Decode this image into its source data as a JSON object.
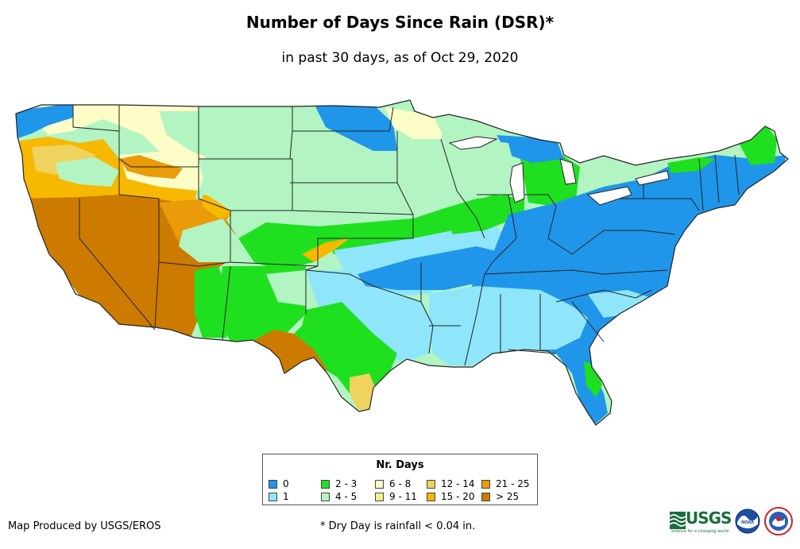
{
  "header": {
    "title": "Number of Days Since Rain (DSR)*",
    "subtitle": "in past 30 days, as of Oct 29, 2020"
  },
  "legend": {
    "title": "Nr. Days",
    "items": [
      {
        "label": "0",
        "color": "#1f96ea"
      },
      {
        "label": "1",
        "color": "#8fe6fb"
      },
      {
        "label": "2 - 3",
        "color": "#1fe01f"
      },
      {
        "label": "4 - 5",
        "color": "#b2f5c2"
      },
      {
        "label": "6 - 8",
        "color": "#fdfdc8"
      },
      {
        "label": "9 - 11",
        "color": "#f5f08a"
      },
      {
        "label": "12 - 14",
        "color": "#f0d35e"
      },
      {
        "label": "15 - 20",
        "color": "#f7b800"
      },
      {
        "label": "21 - 25",
        "color": "#e99b09"
      },
      {
        "label": "> 25",
        "color": "#cc7a00"
      }
    ]
  },
  "footer": {
    "credit": "Map Produced by USGS/EROS",
    "footnote": "* Dry Day is rainfall < 0.04 in."
  },
  "logos": {
    "usgs": {
      "text": "USGS",
      "tagline": "science for a changing world",
      "icon": "usgs-wave-icon"
    },
    "noaa": {
      "text": "NOAA",
      "icon": "noaa-seal-icon"
    },
    "nws": {
      "icon": "nws-seal-icon"
    }
  }
}
